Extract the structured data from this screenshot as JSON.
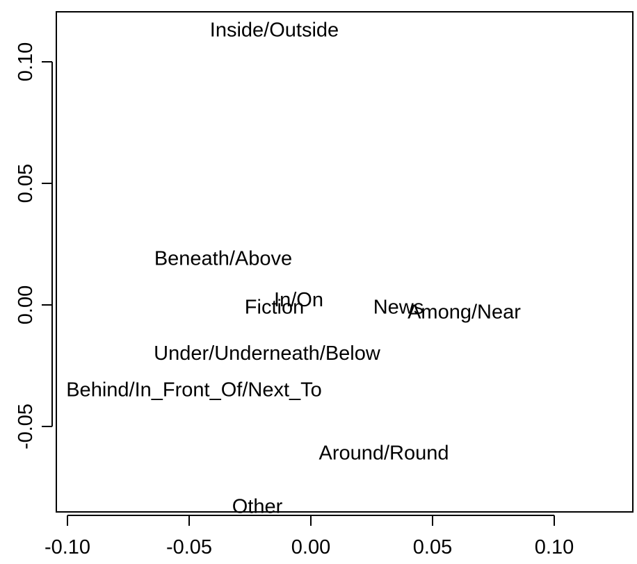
{
  "chart_data": {
    "type": "scatter",
    "title": "",
    "xlabel": "",
    "ylabel": "",
    "xlim": [
      -0.105,
      0.135
    ],
    "ylim": [
      -0.085,
      0.118
    ],
    "xticks": [
      -0.1,
      -0.05,
      0.0,
      0.05,
      0.1
    ],
    "xtick_labels": [
      "-0.10",
      "-0.05",
      "0.00",
      "0.05",
      "0.10"
    ],
    "yticks": [
      -0.05,
      0.0,
      0.05,
      0.1
    ],
    "ytick_labels": [
      "-0.05",
      "0.00",
      "0.05",
      "0.10"
    ],
    "grid": false,
    "points": [
      {
        "label": "Inside/Outside",
        "x": -0.015,
        "y": 0.113
      },
      {
        "label": "Beneath/Above",
        "x": -0.036,
        "y": 0.019
      },
      {
        "label": "In/On",
        "x": -0.005,
        "y": 0.002
      },
      {
        "label": "Fiction",
        "x": -0.015,
        "y": -0.001
      },
      {
        "label": "News",
        "x": 0.036,
        "y": -0.001
      },
      {
        "label": "Among/Near",
        "x": 0.063,
        "y": -0.003
      },
      {
        "label": "Under/Underneath/Below",
        "x": -0.018,
        "y": -0.02
      },
      {
        "label": "Behind/In_Front_Of/Next_To",
        "x": -0.048,
        "y": -0.035
      },
      {
        "label": "Around/Round",
        "x": 0.03,
        "y": -0.061
      },
      {
        "label": "Other",
        "x": -0.022,
        "y": -0.083
      }
    ]
  }
}
